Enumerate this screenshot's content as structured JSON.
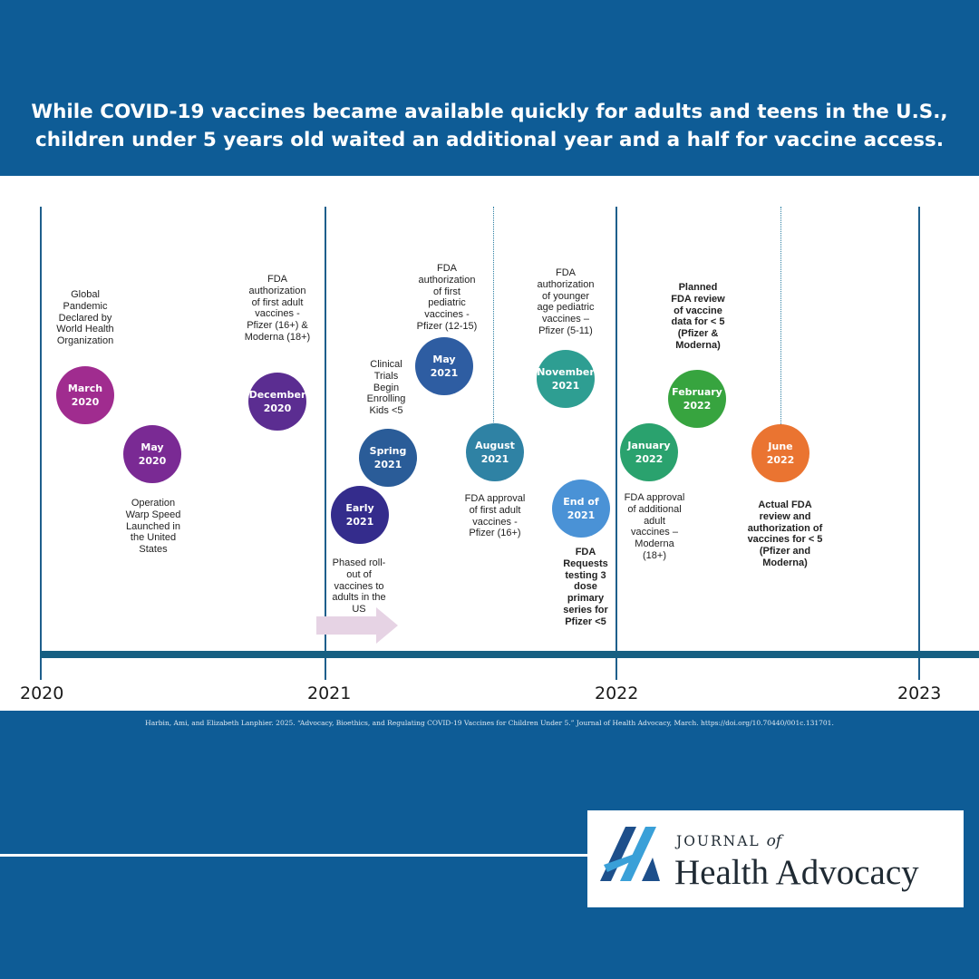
{
  "headline": {
    "line1": "While COVID-19 vaccines became available quickly for adults and teens in the U.S.,",
    "line2": "children under 5 years old waited an additional year and a half for vaccine access."
  },
  "years": [
    "2020",
    "2021",
    "2022",
    "2023"
  ],
  "events": [
    {
      "id": "march-2020",
      "line1": "March",
      "line2": "2020",
      "color": "#a02c8f",
      "desc": [
        "Global",
        "Pandemic",
        "Declared by",
        "World Health",
        "Organization"
      ],
      "desc_bold": false
    },
    {
      "id": "may-2020",
      "line1": "May",
      "line2": "2020",
      "color": "#7a2a94",
      "desc": [
        "Operation",
        "Warp Speed",
        "Launched in",
        "the United",
        "States"
      ],
      "desc_bold": false
    },
    {
      "id": "december-2020",
      "line1": "December",
      "line2": "2020",
      "color": "#5b2d91",
      "desc": [
        "FDA",
        "authorization",
        "of first adult",
        "vaccines -",
        "Pfizer (16+) &",
        "Moderna (18+)"
      ],
      "desc_bold": false
    },
    {
      "id": "early-2021",
      "line1": "Early",
      "line2": "2021",
      "color": "#342c8c",
      "desc": [
        "Phased roll-",
        "out of",
        "vaccines to",
        "adults in the",
        "US"
      ],
      "desc_bold": false
    },
    {
      "id": "spring-2021",
      "line1": "Spring",
      "line2": "2021",
      "color": "#2a5c98",
      "desc": [
        "Clinical",
        "Trials",
        "Begin",
        "Enrolling",
        "Kids <5"
      ],
      "desc_bold": false
    },
    {
      "id": "may-2021",
      "line1": "May",
      "line2": "2021",
      "color": "#2e5da2",
      "desc": [
        "FDA",
        "authorization",
        "of first",
        "pediatric",
        "vaccines -",
        "Pfizer (12-15)"
      ],
      "desc_bold": false
    },
    {
      "id": "august-2021",
      "line1": "August",
      "line2": "2021",
      "color": "#2f82a4",
      "desc": [
        "FDA approval",
        "of first adult",
        "vaccines -",
        "Pfizer (16+)"
      ],
      "desc_bold": false
    },
    {
      "id": "november-2021",
      "line1": "November",
      "line2": "2021",
      "color": "#2e9e92",
      "desc": [
        "FDA",
        "authorization",
        "of younger",
        "age pediatric",
        "vaccines –",
        "Pfizer (5-11)"
      ],
      "desc_bold": false
    },
    {
      "id": "end-2021",
      "line1": "End of",
      "line2": "2021",
      "color": "#4a92d6",
      "desc": [
        "FDA",
        "Requests",
        "testing 3",
        "dose",
        "primary",
        "series for",
        "Pfizer <5"
      ],
      "desc_bold": true
    },
    {
      "id": "january-2022",
      "line1": "January",
      "line2": "2022",
      "color": "#2aa26e",
      "desc": [
        "FDA approval",
        "of additional",
        "adult",
        "vaccines –",
        "Moderna",
        "(18+)"
      ],
      "desc_bold": false
    },
    {
      "id": "february-2022",
      "line1": "February",
      "line2": "2022",
      "color": "#37a43f",
      "desc": [
        "Planned",
        "FDA review",
        "of vaccine",
        "data for < 5",
        "(Pfizer &",
        "Moderna)"
      ],
      "desc_bold": true
    },
    {
      "id": "june-2022",
      "line1": "June",
      "line2": "2022",
      "color": "#ea7431",
      "desc": [
        "Actual FDA",
        "review and",
        "authorization of",
        "vaccines for < 5",
        "(Pfizer and",
        "Moderna)"
      ],
      "desc_bold": true
    }
  ],
  "citation": "Harbin, Ami, and Elizabeth Lanphier. 2025. “Advocacy, Bioethics, and Regulating COVID-19 Vaccines for Children Under 5.” Journal of Health Advocacy, March. https://doi.org/10.70440/001c.131701.",
  "logo": {
    "line1_main": "JOURNAL",
    "line1_italic": "of",
    "line2": "Health Advocacy",
    "color_dark": "#1d4f8b",
    "color_light": "#3aa0d8"
  }
}
